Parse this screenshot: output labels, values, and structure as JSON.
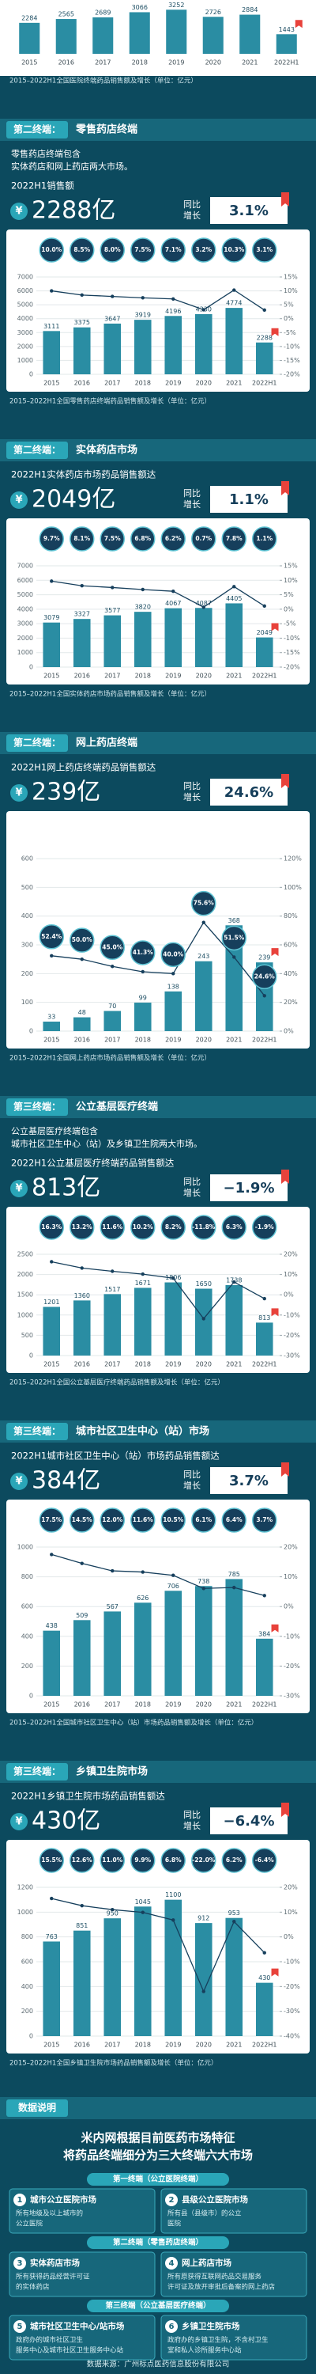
{
  "chart_data": [
    {
      "type": "bar",
      "caption": "2015–2022H1全国医院终端药品销售额及增长（单位：亿元）",
      "categories": [
        "2015",
        "2016",
        "2017",
        "2018",
        "2019",
        "2020",
        "2021",
        "2022H1"
      ],
      "series": [
        {
          "color": "#2a8da3",
          "values": [
            2284,
            2565,
            2689,
            3066,
            3252,
            2726,
            2884,
            1443
          ]
        }
      ],
      "ylim": [
        0,
        3500
      ]
    },
    {
      "type": "bar",
      "caption": "2015–2022H1全国零售药店终端药品销售额及增长（单位：亿元）",
      "categories": [
        "2015",
        "2016",
        "2017",
        "2018",
        "2019",
        "2020",
        "2021",
        "2022H1"
      ],
      "series": [
        {
          "color": "#2a8da3",
          "values": [
            3111,
            3375,
            3647,
            3919,
            4196,
            4330,
            4774,
            2288
          ]
        },
        {
          "axis": "y2",
          "color": "#163f5c",
          "values": [
            10.0,
            8.5,
            8.0,
            7.5,
            7.1,
            3.2,
            10.3,
            3.1
          ],
          "value_labels": [
            "10.0%",
            "8.5%",
            "8.0%",
            "7.5%",
            "7.1%",
            "3.2%",
            "10.3%",
            "3.1%"
          ]
        }
      ],
      "ylim": [
        0,
        7000
      ],
      "yticks": [
        0,
        1000,
        2000,
        3000,
        4000,
        5000,
        6000,
        7000
      ],
      "y2lim": [
        -20,
        15
      ],
      "y2ticks": [
        {
          "value": -20,
          "label": "-20%"
        },
        {
          "value": -15,
          "label": "-15%"
        },
        {
          "value": -10,
          "label": "-10%"
        },
        {
          "value": -5,
          "label": "-5%"
        },
        {
          "value": 0,
          "label": "0%"
        },
        {
          "value": 5,
          "label": "5%"
        },
        {
          "value": 10,
          "label": "10%"
        },
        {
          "value": 15,
          "label": "15%"
        }
      ],
      "grid": true
    },
    {
      "type": "bar",
      "caption": "2015–2022H1全国实体药店市场药品销售额及增长（单位：亿元）",
      "categories": [
        "2015",
        "2016",
        "2017",
        "2018",
        "2019",
        "2020",
        "2021",
        "2022H1"
      ],
      "series": [
        {
          "color": "#2a8da3",
          "values": [
            3079,
            3327,
            3577,
            3820,
            4067,
            4087,
            4405,
            2049
          ]
        },
        {
          "axis": "y2",
          "color": "#163f5c",
          "values": [
            9.7,
            8.1,
            7.5,
            6.8,
            6.2,
            0.7,
            7.8,
            1.1
          ],
          "value_labels": [
            "9.7%",
            "8.1%",
            "7.5%",
            "6.8%",
            "6.2%",
            "0.7%",
            "7.8%",
            "1.1%"
          ]
        }
      ],
      "ylim": [
        0,
        7000
      ],
      "yticks": [
        0,
        1000,
        2000,
        3000,
        4000,
        5000,
        6000,
        7000
      ],
      "y2lim": [
        -20,
        15
      ],
      "y2ticks": [
        {
          "value": -20,
          "label": "-20%"
        },
        {
          "value": -15,
          "label": "-15%"
        },
        {
          "value": -10,
          "label": "-10%"
        },
        {
          "value": -5,
          "label": "-5%"
        },
        {
          "value": 0,
          "label": "0%"
        },
        {
          "value": 5,
          "label": "5%"
        },
        {
          "value": 10,
          "label": "10%"
        },
        {
          "value": 15,
          "label": "15%"
        }
      ],
      "grid": true
    },
    {
      "type": "bar",
      "caption": "2015–2022H1全国网上药店市场药品销售额及增长（单位：亿元）",
      "labels_follow_line": true,
      "categories": [
        "2015",
        "2016",
        "2017",
        "2018",
        "2019",
        "2020",
        "2021",
        "2022H1"
      ],
      "series": [
        {
          "color": "#2a8da3",
          "values": [
            33,
            48,
            70,
            99,
            138,
            243,
            368,
            239
          ]
        },
        {
          "axis": "y2",
          "color": "#163f5c",
          "values": [
            52.4,
            50.0,
            45.0,
            41.3,
            40.0,
            75.6,
            51.5,
            24.6
          ],
          "value_labels": [
            "52.4%",
            "50.0%",
            "45.0%",
            "41.3%",
            "40.0%",
            "75.6%",
            "51.5%",
            "24.6%"
          ]
        }
      ],
      "ylim": [
        0,
        600
      ],
      "yticks": [
        0,
        100,
        200,
        300,
        400,
        500,
        600
      ],
      "y2lim": [
        0,
        120
      ],
      "y2ticks": [
        {
          "value": 0,
          "label": "0%"
        },
        {
          "value": 20,
          "label": "20%"
        },
        {
          "value": 40,
          "label": "40%"
        },
        {
          "value": 60,
          "label": "60%"
        },
        {
          "value": 80,
          "label": "80%"
        },
        {
          "value": 100,
          "label": "100%"
        },
        {
          "value": 120,
          "label": "120%"
        }
      ],
      "grid": true
    },
    {
      "type": "bar",
      "caption": "2015–2022H1全国公立基层医疗终端药品销售额及增长（单位：亿元）",
      "categories": [
        "2015",
        "2016",
        "2017",
        "2018",
        "2019",
        "2020",
        "2021",
        "2022H1"
      ],
      "series": [
        {
          "color": "#2a8da3",
          "values": [
            1201,
            1360,
            1517,
            1671,
            1806,
            1650,
            1738,
            813
          ]
        },
        {
          "axis": "y2",
          "color": "#163f5c",
          "values": [
            16.3,
            13.2,
            11.6,
            10.2,
            8.2,
            -11.8,
            6.3,
            -1.9
          ],
          "value_labels": [
            "16.3%",
            "13.2%",
            "11.6%",
            "10.2%",
            "8.2%",
            "-11.8%",
            "6.3%",
            "-1.9%"
          ]
        }
      ],
      "ylim": [
        0,
        2500
      ],
      "yticks": [
        0,
        500,
        1000,
        1500,
        2000,
        2500
      ],
      "y2lim": [
        -30,
        20
      ],
      "y2ticks": [
        {
          "value": -30,
          "label": "-30%"
        },
        {
          "value": -20,
          "label": "-20%"
        },
        {
          "value": -10,
          "label": "-10%"
        },
        {
          "value": 0,
          "label": "0%"
        },
        {
          "value": 10,
          "label": "10%"
        },
        {
          "value": 20,
          "label": "20%"
        }
      ],
      "grid": true
    },
    {
      "type": "bar",
      "caption": "2015–2022H1全国城市社区卫生中心（站）市场药品销售额及增长（单位：亿元）",
      "categories": [
        "2015",
        "2016",
        "2017",
        "2018",
        "2019",
        "2020",
        "2021",
        "2022H1"
      ],
      "series": [
        {
          "color": "#2a8da3",
          "values": [
            438,
            509,
            567,
            626,
            706,
            738,
            785,
            384
          ]
        },
        {
          "axis": "y2",
          "color": "#163f5c",
          "values": [
            17.5,
            14.5,
            12.0,
            11.6,
            10.5,
            6.1,
            6.4,
            3.7
          ],
          "value_labels": [
            "17.5%",
            "14.5%",
            "12.0%",
            "11.6%",
            "10.5%",
            "6.1%",
            "6.4%",
            "3.7%"
          ]
        }
      ],
      "ylim": [
        0,
        1000
      ],
      "yticks": [
        0,
        200,
        400,
        600,
        800,
        1000
      ],
      "y2lim": [
        -30,
        20
      ],
      "y2ticks": [
        {
          "value": -30,
          "label": "-30%"
        },
        {
          "value": -20,
          "label": "-20%"
        },
        {
          "value": -10,
          "label": "-10%"
        },
        {
          "value": 0,
          "label": "0%"
        },
        {
          "value": 10,
          "label": "10%"
        },
        {
          "value": 20,
          "label": "20%"
        }
      ],
      "grid": true
    },
    {
      "type": "bar",
      "caption": "2015–2022H1全国乡镇卫生院市场药品销售额及增长（单位：亿元）",
      "categories": [
        "2015",
        "2016",
        "2017",
        "2018",
        "2019",
        "2020",
        "2021",
        "2022H1"
      ],
      "series": [
        {
          "color": "#2a8da3",
          "values": [
            763,
            851,
            950,
            1045,
            1100,
            912,
            953,
            430
          ]
        },
        {
          "axis": "y2",
          "color": "#163f5c",
          "values": [
            15.5,
            12.6,
            11.0,
            9.9,
            6.8,
            -22.0,
            6.2,
            -6.4
          ],
          "value_labels": [
            "15.5%",
            "12.6%",
            "11.0%",
            "9.9%",
            "6.8%",
            "-22.0%",
            "6.2%",
            "-6.4%"
          ]
        }
      ],
      "ylim": [
        0,
        1200
      ],
      "yticks": [
        0,
        200,
        400,
        600,
        800,
        1000,
        1200
      ],
      "y2lim": [
        -40,
        20
      ],
      "y2ticks": [
        {
          "value": -40,
          "label": "-40%"
        },
        {
          "value": -30,
          "label": "-30%"
        },
        {
          "value": -20,
          "label": "-20%"
        },
        {
          "value": -10,
          "label": "-10%"
        },
        {
          "value": 0,
          "label": "0%"
        },
        {
          "value": 10,
          "label": "10%"
        },
        {
          "value": 20,
          "label": "20%"
        }
      ],
      "grid": true
    }
  ],
  "sections": [
    {
      "tag": "第二终端：",
      "title": "零售药店终端",
      "intro": [
        "零售药店终端包含",
        "实体药店和网上药店两大市场。"
      ],
      "sales_label": "2022H1销售额",
      "currency": "¥",
      "amount": "2288亿",
      "growth_label": [
        "同比",
        "增长"
      ],
      "growth": "3.1%"
    },
    {
      "tag": "第二终端：",
      "title": "实体药店市场",
      "sales_label": "2022H1实体药店市场药品销售额达",
      "currency": "¥",
      "amount": "2049亿",
      "growth_label": [
        "同比",
        "增长"
      ],
      "growth": "1.1%"
    },
    {
      "tag": "第二终端：",
      "title": "网上药店终端",
      "sales_label": "2022H1网上药店终端药品销售额达",
      "currency": "¥",
      "amount": "239亿",
      "growth_label": [
        "同比",
        "增长"
      ],
      "growth": "24.6%"
    },
    {
      "tag": "第三终端：",
      "title": "公立基层医疗终端",
      "intro": [
        "公立基层医疗终端包含",
        "城市社区卫生中心（站）及乡镇卫生院两大市场。"
      ],
      "sales_label": "2022H1公立基层医疗终端药品销售额达",
      "currency": "¥",
      "amount": "813亿",
      "growth_label": [
        "同比",
        "增长"
      ],
      "growth": "−1.9%"
    },
    {
      "tag": "第三终端：",
      "title": "城市社区卫生中心（站）市场",
      "sales_label": "2022H1城市社区卫生中心（站）市场药品销售额达",
      "currency": "¥",
      "amount": "384亿",
      "growth_label": [
        "同比",
        "增长"
      ],
      "growth": "3.7%"
    },
    {
      "tag": "第三终端：",
      "title": "乡镇卫生院市场",
      "sales_label": "2022H1乡镇卫生院市场药品销售额达",
      "currency": "¥",
      "amount": "430亿",
      "growth_label": [
        "同比",
        "增长"
      ],
      "growth": "−6.4%"
    }
  ],
  "notes": {
    "tag": "数据说明",
    "title": [
      "米内网根据目前医药市场特征",
      "将药品终端细分为三大终端六大市场"
    ],
    "groups": [
      {
        "heading": "第一终端（公立医院终端）",
        "items": [
          {
            "no": "1",
            "name": "城市公立医院市场",
            "desc": [
              "所有地级及以上城市的",
              "公立医院"
            ]
          },
          {
            "no": "2",
            "name": "县级公立医院市场",
            "desc": [
              "所有县（县级市）的公立",
              "医院"
            ]
          }
        ]
      },
      {
        "heading": "第二终端（零售药店终端）",
        "items": [
          {
            "no": "3",
            "name": "实体药店市场",
            "desc": [
              "所有获得药品经营许可证",
              "的实体药店"
            ]
          },
          {
            "no": "4",
            "name": "网上药店市场",
            "desc": [
              "所有原获得互联网药品交易服务",
              "许可证及放开审批后备案的网上药店"
            ]
          }
        ]
      },
      {
        "heading": "第三终端（公立基层医疗终端）",
        "items": [
          {
            "no": "5",
            "name": "城市社区卫生中心/站市场",
            "desc": [
              "政府办的城市社区卫生",
              "服务中心及城市社区卫生服务中心站"
            ]
          },
          {
            "no": "6",
            "name": "乡镇卫生院市场",
            "desc": [
              "政府办的乡镇卫生院，不含村卫生",
              "室和私人诊所服务中心站"
            ]
          }
        ]
      }
    ],
    "source": "数据来源：广州标点医药信息股份有限公司"
  }
}
